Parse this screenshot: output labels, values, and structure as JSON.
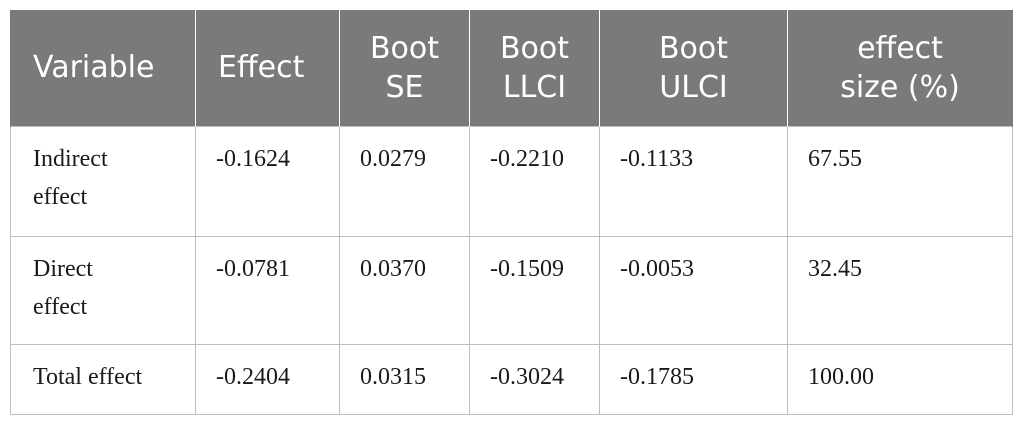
{
  "table": {
    "headers": [
      "Variable",
      "Effect",
      "Boot SE",
      "Boot LLCI",
      "Boot ULCI",
      "effect size (%)"
    ],
    "header_lines": [
      [
        "Variable"
      ],
      [
        "Effect"
      ],
      [
        "Boot",
        "SE"
      ],
      [
        "Boot",
        "LLCI"
      ],
      [
        "Boot",
        "ULCI"
      ],
      [
        "effect",
        "size (%)"
      ]
    ],
    "rows": [
      {
        "variable_lines": [
          "Indirect",
          "effect"
        ],
        "effect": "-0.1624",
        "boot_se": "0.0279",
        "boot_llci": "-0.2210",
        "boot_ulci": "-0.1133",
        "effect_size": "67.55"
      },
      {
        "variable_lines": [
          "Direct",
          "effect"
        ],
        "effect": "-0.0781",
        "boot_se": "0.0370",
        "boot_llci": "-0.1509",
        "boot_ulci": "-0.0053",
        "effect_size": "32.45"
      },
      {
        "variable_lines": [
          "Total effect"
        ],
        "effect": "-0.2404",
        "boot_se": "0.0315",
        "boot_llci": "-0.3024",
        "boot_ulci": "-0.1785",
        "effect_size": "100.00"
      }
    ]
  },
  "colors": {
    "header_bg": "#7a7a7c",
    "header_text": "#ffffff",
    "grid": "#bdbdbd",
    "body_text": "#1a1a1a"
  }
}
